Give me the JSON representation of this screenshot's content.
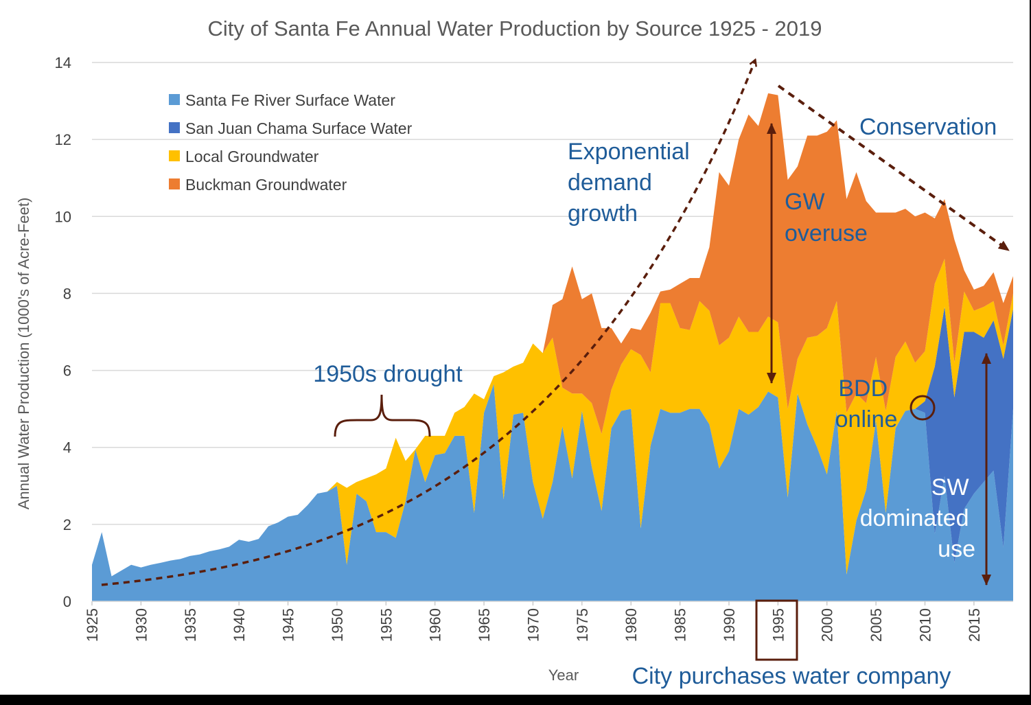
{
  "colors": {
    "santa_fe_river": "#5b9bd5",
    "san_juan_chama": "#4472c4",
    "local_groundwater": "#ffc000",
    "buckman_groundwater": "#ed7d31",
    "annotation_text": "#1f5c99",
    "annotation_arrow": "#5a1e0c",
    "gridline": "#d9d9d9"
  },
  "chart_data": {
    "type": "area",
    "stacked": true,
    "title": "City of Santa Fe Annual Water Production by Source 1925 - 2019",
    "xlabel": "Year",
    "ylabel": "Annual Water Production (1000's of Acre-Feet)",
    "ylim": [
      0,
      14
    ],
    "yticks": [
      0,
      2,
      4,
      6,
      8,
      10,
      12,
      14
    ],
    "xlim": [
      1925,
      2019
    ],
    "xticks": [
      1925,
      1930,
      1935,
      1940,
      1945,
      1950,
      1955,
      1960,
      1965,
      1970,
      1975,
      1980,
      1985,
      1990,
      1995,
      2000,
      2005,
      2010,
      2015
    ],
    "grid": true,
    "legend_position": "top-left",
    "x": [
      1925,
      1926,
      1927,
      1928,
      1929,
      1930,
      1931,
      1932,
      1933,
      1934,
      1935,
      1936,
      1937,
      1938,
      1939,
      1940,
      1941,
      1942,
      1943,
      1944,
      1945,
      1946,
      1947,
      1948,
      1949,
      1950,
      1951,
      1952,
      1953,
      1954,
      1955,
      1956,
      1957,
      1958,
      1959,
      1960,
      1961,
      1962,
      1963,
      1964,
      1965,
      1966,
      1967,
      1968,
      1969,
      1970,
      1971,
      1972,
      1973,
      1974,
      1975,
      1976,
      1977,
      1978,
      1979,
      1980,
      1981,
      1982,
      1983,
      1984,
      1985,
      1986,
      1987,
      1988,
      1989,
      1990,
      1991,
      1992,
      1993,
      1994,
      1995,
      1996,
      1997,
      1998,
      1999,
      2000,
      2001,
      2002,
      2003,
      2004,
      2005,
      2006,
      2007,
      2008,
      2009,
      2010,
      2011,
      2012,
      2013,
      2014,
      2015,
      2016,
      2017,
      2018,
      2019
    ],
    "series": [
      {
        "name": "Santa Fe River Surface Water",
        "values": [
          0.95,
          1.8,
          0.65,
          0.8,
          0.95,
          0.88,
          0.95,
          1.0,
          1.06,
          1.1,
          1.18,
          1.22,
          1.3,
          1.35,
          1.42,
          1.6,
          1.55,
          1.62,
          1.95,
          2.05,
          2.2,
          2.25,
          2.5,
          2.8,
          2.85,
          3.0,
          0.95,
          2.8,
          2.6,
          1.8,
          1.8,
          1.65,
          2.6,
          3.95,
          3.1,
          3.8,
          3.85,
          4.3,
          4.3,
          2.3,
          4.9,
          5.65,
          2.65,
          4.85,
          4.9,
          3.1,
          2.15,
          3.1,
          4.55,
          3.2,
          4.95,
          3.5,
          2.35,
          4.5,
          4.95,
          5.0,
          1.9,
          4.05,
          5.0,
          4.9,
          4.9,
          5.0,
          5.0,
          4.6,
          3.45,
          3.9,
          5.0,
          4.85,
          5.05,
          5.45,
          5.3,
          2.7,
          5.4,
          4.6,
          4.0,
          3.3,
          4.95,
          0.7,
          2.1,
          2.9,
          4.7,
          2.3,
          4.5,
          4.95,
          5.0,
          4.9,
          1.75,
          3.25,
          1.0,
          2.4,
          2.8,
          3.1,
          3.4,
          1.4,
          5.0
        ]
      },
      {
        "name": "San Juan Chama Surface Water",
        "values": [
          0,
          0,
          0,
          0,
          0,
          0,
          0,
          0,
          0,
          0,
          0,
          0,
          0,
          0,
          0,
          0,
          0,
          0,
          0,
          0,
          0,
          0,
          0,
          0,
          0,
          0,
          0,
          0,
          0,
          0,
          0,
          0,
          0,
          0,
          0,
          0,
          0,
          0,
          0,
          0,
          0,
          0,
          0,
          0,
          0,
          0,
          0,
          0,
          0,
          0,
          0,
          0,
          0,
          0,
          0,
          0,
          0,
          0,
          0,
          0,
          0,
          0,
          0,
          0,
          0,
          0,
          0,
          0,
          0,
          0,
          0,
          0,
          0,
          0,
          0,
          0,
          0,
          0,
          0,
          0,
          0,
          0,
          0,
          0,
          0,
          0.3,
          4.35,
          4.4,
          4.3,
          4.6,
          4.2,
          3.75,
          3.9,
          4.9,
          2.6
        ]
      },
      {
        "name": "Local Groundwater",
        "values": [
          0,
          0,
          0,
          0,
          0,
          0,
          0,
          0,
          0,
          0,
          0,
          0,
          0,
          0,
          0,
          0,
          0,
          0,
          0,
          0,
          0,
          0,
          0,
          0,
          0,
          0.1,
          2.0,
          0.3,
          0.6,
          1.5,
          1.65,
          2.6,
          1.05,
          0,
          1.2,
          0.5,
          0.45,
          0.6,
          0.75,
          3.1,
          0.35,
          0.2,
          3.3,
          1.25,
          1.3,
          3.6,
          4.3,
          3.75,
          1.0,
          2.2,
          0.45,
          1.65,
          2.0,
          1.0,
          1.2,
          1.55,
          4.5,
          1.9,
          2.75,
          2.85,
          2.2,
          2.05,
          2.8,
          2.95,
          3.2,
          2.95,
          2.4,
          2.15,
          1.95,
          1.95,
          1.95,
          2.3,
          0.9,
          2.25,
          2.9,
          3.8,
          2.85,
          4.2,
          3.3,
          2.25,
          1.65,
          2.65,
          1.85,
          1.8,
          1.2,
          1.3,
          2.15,
          1.25,
          0.9,
          1.05,
          0.55,
          0.8,
          0.5,
          0.35,
          0.4
        ]
      },
      {
        "name": "Buckman Groundwater",
        "values": [
          0,
          0,
          0,
          0,
          0,
          0,
          0,
          0,
          0,
          0,
          0,
          0,
          0,
          0,
          0,
          0,
          0,
          0,
          0,
          0,
          0,
          0,
          0,
          0,
          0,
          0,
          0,
          0,
          0,
          0,
          0,
          0,
          0,
          0,
          0,
          0,
          0,
          0,
          0,
          0,
          0,
          0,
          0,
          0,
          0,
          0,
          0,
          0.85,
          2.3,
          3.3,
          2.45,
          2.85,
          2.75,
          1.6,
          0.55,
          0.55,
          0.65,
          1.55,
          0.3,
          0.35,
          1.15,
          1.35,
          0.6,
          1.65,
          4.5,
          3.95,
          4.6,
          5.65,
          5.35,
          5.8,
          5.9,
          5.95,
          5.0,
          5.25,
          5.2,
          5.1,
          4.7,
          5.55,
          5.75,
          5.25,
          3.75,
          5.15,
          3.75,
          3.45,
          3.8,
          3.6,
          1.7,
          1.55,
          3.2,
          0.55,
          0.55,
          0.55,
          0.75,
          1.1,
          0.45
        ]
      }
    ],
    "annotations": [
      {
        "id": "drought",
        "text": "1950s drought"
      },
      {
        "id": "exp",
        "lines": [
          "Exponential",
          "demand",
          "growth"
        ]
      },
      {
        "id": "gw",
        "lines": [
          "GW",
          "overuse"
        ]
      },
      {
        "id": "cons",
        "text": "Conservation"
      },
      {
        "id": "bdd",
        "lines": [
          "BDD",
          "online"
        ]
      },
      {
        "id": "sw",
        "lines": [
          "SW",
          "dominated",
          "use"
        ]
      },
      {
        "id": "city",
        "text": "City purchases water company"
      }
    ]
  }
}
